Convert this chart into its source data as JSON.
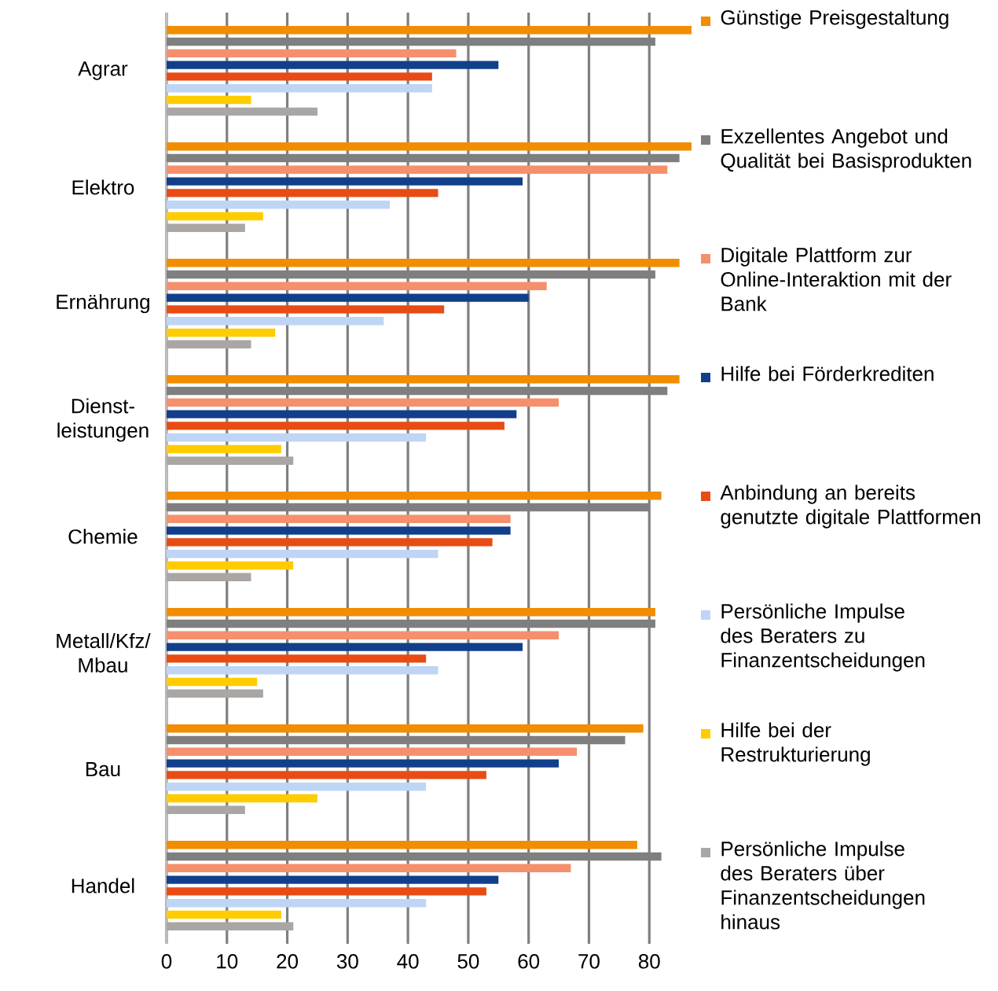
{
  "chart_data": {
    "type": "bar",
    "orientation": "horizontal",
    "categories": [
      "Agrar",
      "Elektro",
      "Ernährung",
      "Dienst-leistungen",
      "Chemie",
      "Metall/Kfz/ Mbau",
      "Bau",
      "Handel"
    ],
    "series": [
      {
        "name": "Günstige Preisgestaltung",
        "color": "#f28c00",
        "values": [
          87,
          87,
          85,
          85,
          82,
          81,
          79,
          78
        ]
      },
      {
        "name": "Exzellentes Angebot und Qualität bei Basisprodukten",
        "color": "#7f7f7f",
        "values": [
          81,
          85,
          81,
          83,
          80,
          81,
          76,
          82
        ]
      },
      {
        "name": "Digitale Plattform zur Online-Interaktion mit der Bank",
        "color": "#f5906c",
        "values": [
          48,
          83,
          63,
          65,
          57,
          65,
          68,
          67
        ]
      },
      {
        "name": "Hilfe bei Förderkrediten",
        "color": "#123f8a",
        "values": [
          55,
          59,
          60,
          58,
          57,
          59,
          65,
          55
        ]
      },
      {
        "name": "Anbindung an bereits genutzte digitale Plattformen",
        "color": "#e84c14",
        "values": [
          44,
          45,
          46,
          56,
          54,
          43,
          53,
          53
        ]
      },
      {
        "name": "Persönliche Impulse des Beraters zu Finanzentscheidungen",
        "color": "#bfd5f5",
        "values": [
          44,
          37,
          36,
          43,
          45,
          45,
          43,
          43
        ]
      },
      {
        "name": "Hilfe bei der Restrukturierung",
        "color": "#ffcc00",
        "values": [
          14,
          16,
          18,
          19,
          21,
          15,
          25,
          19
        ]
      },
      {
        "name": "Persönliche Impulse des Beraters über Finanzentscheidungen hinaus",
        "color": "#aaa6a3",
        "values": [
          25,
          13,
          14,
          21,
          14,
          16,
          13,
          21
        ]
      }
    ],
    "xlim": [
      0,
      87
    ],
    "xticks": [
      0,
      10,
      20,
      30,
      40,
      50,
      60,
      70,
      80
    ],
    "grid": "x",
    "legend": "right"
  }
}
